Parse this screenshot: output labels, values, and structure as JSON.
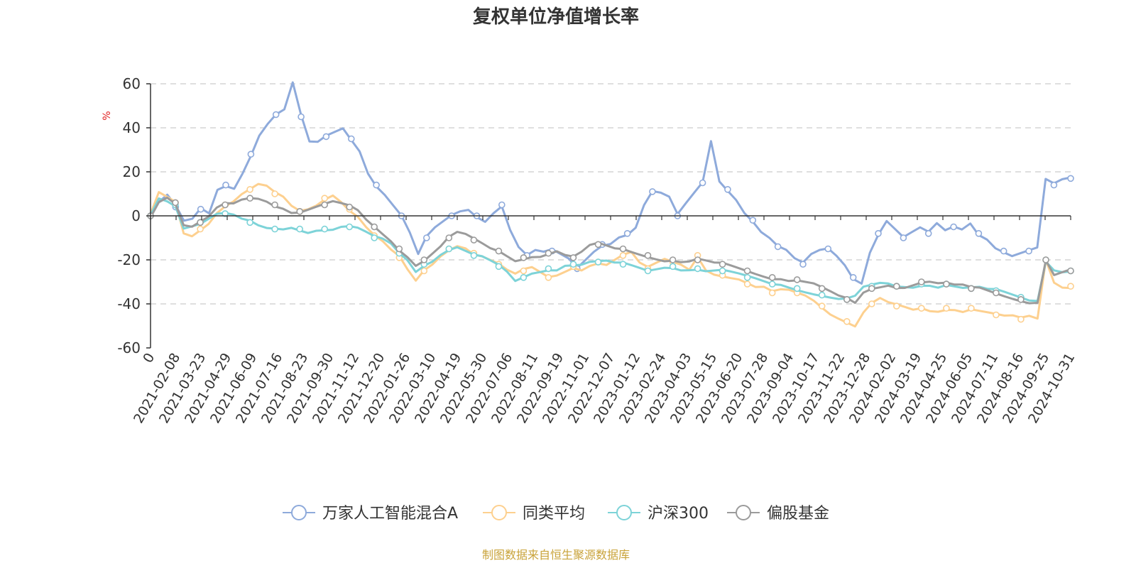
{
  "chart_data": {
    "type": "line",
    "title": "复权单位净值增长率",
    "ylabel": "%",
    "ylim": [
      -60,
      60
    ],
    "yticks": [
      60,
      40,
      20,
      0,
      -20,
      -40,
      -60
    ],
    "x_start_label": "0",
    "x_ticks": [
      "2021-02-08",
      "2021-03-23",
      "2021-04-29",
      "2021-06-09",
      "2021-07-16",
      "2021-08-23",
      "2021-09-30",
      "2021-11-12",
      "2021-12-20",
      "2022-01-26",
      "2022-03-10",
      "2022-04-19",
      "2022-05-30",
      "2022-07-06",
      "2022-08-11",
      "2022-09-19",
      "2022-11-01",
      "2022-12-07",
      "2023-01-12",
      "2023-02-24",
      "2023-04-03",
      "2023-05-15",
      "2023-06-20",
      "2023-07-28",
      "2023-09-04",
      "2023-10-17",
      "2023-11-22",
      "2023-12-28",
      "2024-02-02",
      "2024-03-19",
      "2024-04-25",
      "2024-06-05",
      "2024-07-11",
      "2024-08-16",
      "2024-09-25",
      "2024-10-31"
    ],
    "grid": true,
    "legend_position": "bottom",
    "series": [
      {
        "name": "万家人工智能混合A",
        "color": "#8eaadb",
        "values": [
          0,
          6,
          9,
          4,
          -3,
          -2,
          3,
          1,
          12,
          14,
          13,
          20,
          28,
          37,
          42,
          46,
          48,
          60,
          45,
          33,
          33,
          36,
          38,
          40,
          35,
          30,
          20,
          14,
          10,
          5,
          0,
          -8,
          -18,
          -10,
          -6,
          -3,
          0,
          2,
          3,
          0,
          -2,
          2,
          5,
          -6,
          -14,
          -18,
          -16,
          -17,
          -16,
          -18,
          -20,
          -24,
          -20,
          -16,
          -13,
          -12,
          -9,
          -8,
          -5,
          5,
          11,
          10,
          8,
          0,
          5,
          10,
          15,
          34,
          16,
          12,
          8,
          2,
          -2,
          -7,
          -10,
          -14,
          -16,
          -20,
          -22,
          -18,
          -16,
          -15,
          -18,
          -22,
          -28,
          -30,
          -16,
          -8,
          -2,
          -6,
          -10,
          -8,
          -6,
          -8,
          -4,
          -7,
          -5,
          -6,
          -3,
          -8,
          -10,
          -14,
          -16,
          -18,
          -17,
          -16,
          -15,
          16,
          14,
          16,
          17
        ]
      },
      {
        "name": "同类平均",
        "color": "#fdd08f",
        "values": [
          0,
          10,
          8,
          6,
          -8,
          -9,
          -6,
          -3,
          2,
          5,
          7,
          10,
          12,
          14,
          13,
          10,
          8,
          4,
          2,
          3,
          5,
          8,
          10,
          7,
          3,
          0,
          -5,
          -9,
          -12,
          -16,
          -19,
          -25,
          -30,
          -25,
          -22,
          -18,
          -15,
          -13,
          -14,
          -17,
          -18,
          -20,
          -22,
          -25,
          -27,
          -25,
          -24,
          -26,
          -28,
          -27,
          -25,
          -23,
          -24,
          -22,
          -21,
          -22,
          -20,
          -18,
          -17,
          -22,
          -24,
          -22,
          -20,
          -21,
          -22,
          -24,
          -18,
          -24,
          -26,
          -27,
          -28,
          -29,
          -31,
          -33,
          -33,
          -35,
          -34,
          -34,
          -35,
          -36,
          -38,
          -41,
          -44,
          -46,
          -48,
          -50,
          -44,
          -40,
          -38,
          -40,
          -41,
          -42,
          -43,
          -42,
          -43,
          -43,
          -42,
          -42,
          -43,
          -42,
          -43,
          -44,
          -45,
          -46,
          -46,
          -47,
          -46,
          -47,
          -20,
          -30,
          -32,
          -32
        ]
      },
      {
        "name": "沪深300",
        "color": "#7dd3d8",
        "values": [
          0,
          8,
          7,
          5,
          -5,
          -4,
          -3,
          -1,
          1,
          1,
          0,
          -2,
          -3,
          -5,
          -6,
          -6,
          -6,
          -5,
          -6,
          -7,
          -6,
          -6,
          -6,
          -5,
          -5,
          -6,
          -8,
          -10,
          -11,
          -13,
          -17,
          -20,
          -25,
          -22,
          -20,
          -17,
          -15,
          -14,
          -16,
          -18,
          -19,
          -21,
          -23,
          -26,
          -30,
          -28,
          -26,
          -25,
          -24,
          -24,
          -22,
          -22,
          -22,
          -21,
          -21,
          -21,
          -22,
          -22,
          -23,
          -24,
          -25,
          -24,
          -23,
          -23,
          -24,
          -24,
          -24,
          -25,
          -25,
          -25,
          -26,
          -27,
          -28,
          -29,
          -30,
          -31,
          -31,
          -32,
          -33,
          -34,
          -35,
          -36,
          -37,
          -38,
          -38,
          -37,
          -33,
          -32,
          -31,
          -31,
          -32,
          -32,
          -32,
          -31,
          -31,
          -32,
          -31,
          -32,
          -33,
          -33,
          -33,
          -34,
          -34,
          -35,
          -36,
          -37,
          -38,
          -38,
          -20,
          -24,
          -25,
          -25
        ]
      },
      {
        "name": "偏股基金",
        "color": "#9b9b9b",
        "values": [
          0,
          7,
          9,
          6,
          -4,
          -5,
          -3,
          -1,
          3,
          5,
          5,
          7,
          8,
          8,
          7,
          5,
          4,
          2,
          2,
          3,
          4,
          5,
          6,
          5,
          4,
          2,
          -2,
          -5,
          -8,
          -11,
          -15,
          -18,
          -22,
          -20,
          -17,
          -14,
          -10,
          -8,
          -9,
          -11,
          -13,
          -15,
          -16,
          -18,
          -20,
          -19,
          -18,
          -18,
          -17,
          -16,
          -18,
          -19,
          -17,
          -14,
          -13,
          -14,
          -15,
          -15,
          -16,
          -17,
          -18,
          -19,
          -20,
          -20,
          -21,
          -21,
          -20,
          -21,
          -22,
          -22,
          -23,
          -24,
          -25,
          -26,
          -27,
          -28,
          -28,
          -29,
          -29,
          -30,
          -31,
          -33,
          -35,
          -37,
          -38,
          -40,
          -35,
          -33,
          -32,
          -31,
          -32,
          -32,
          -31,
          -30,
          -30,
          -31,
          -31,
          -32,
          -32,
          -33,
          -33,
          -34,
          -35,
          -36,
          -37,
          -38,
          -39,
          -39,
          -20,
          -27,
          -26,
          -25
        ]
      }
    ]
  },
  "footer": {
    "source": "制图数据来自恒生聚源数据库"
  },
  "colors": {
    "unit_label": "#e02020",
    "source_text": "#c9a33a",
    "axis": "#333333",
    "grid": "#cccccc"
  }
}
